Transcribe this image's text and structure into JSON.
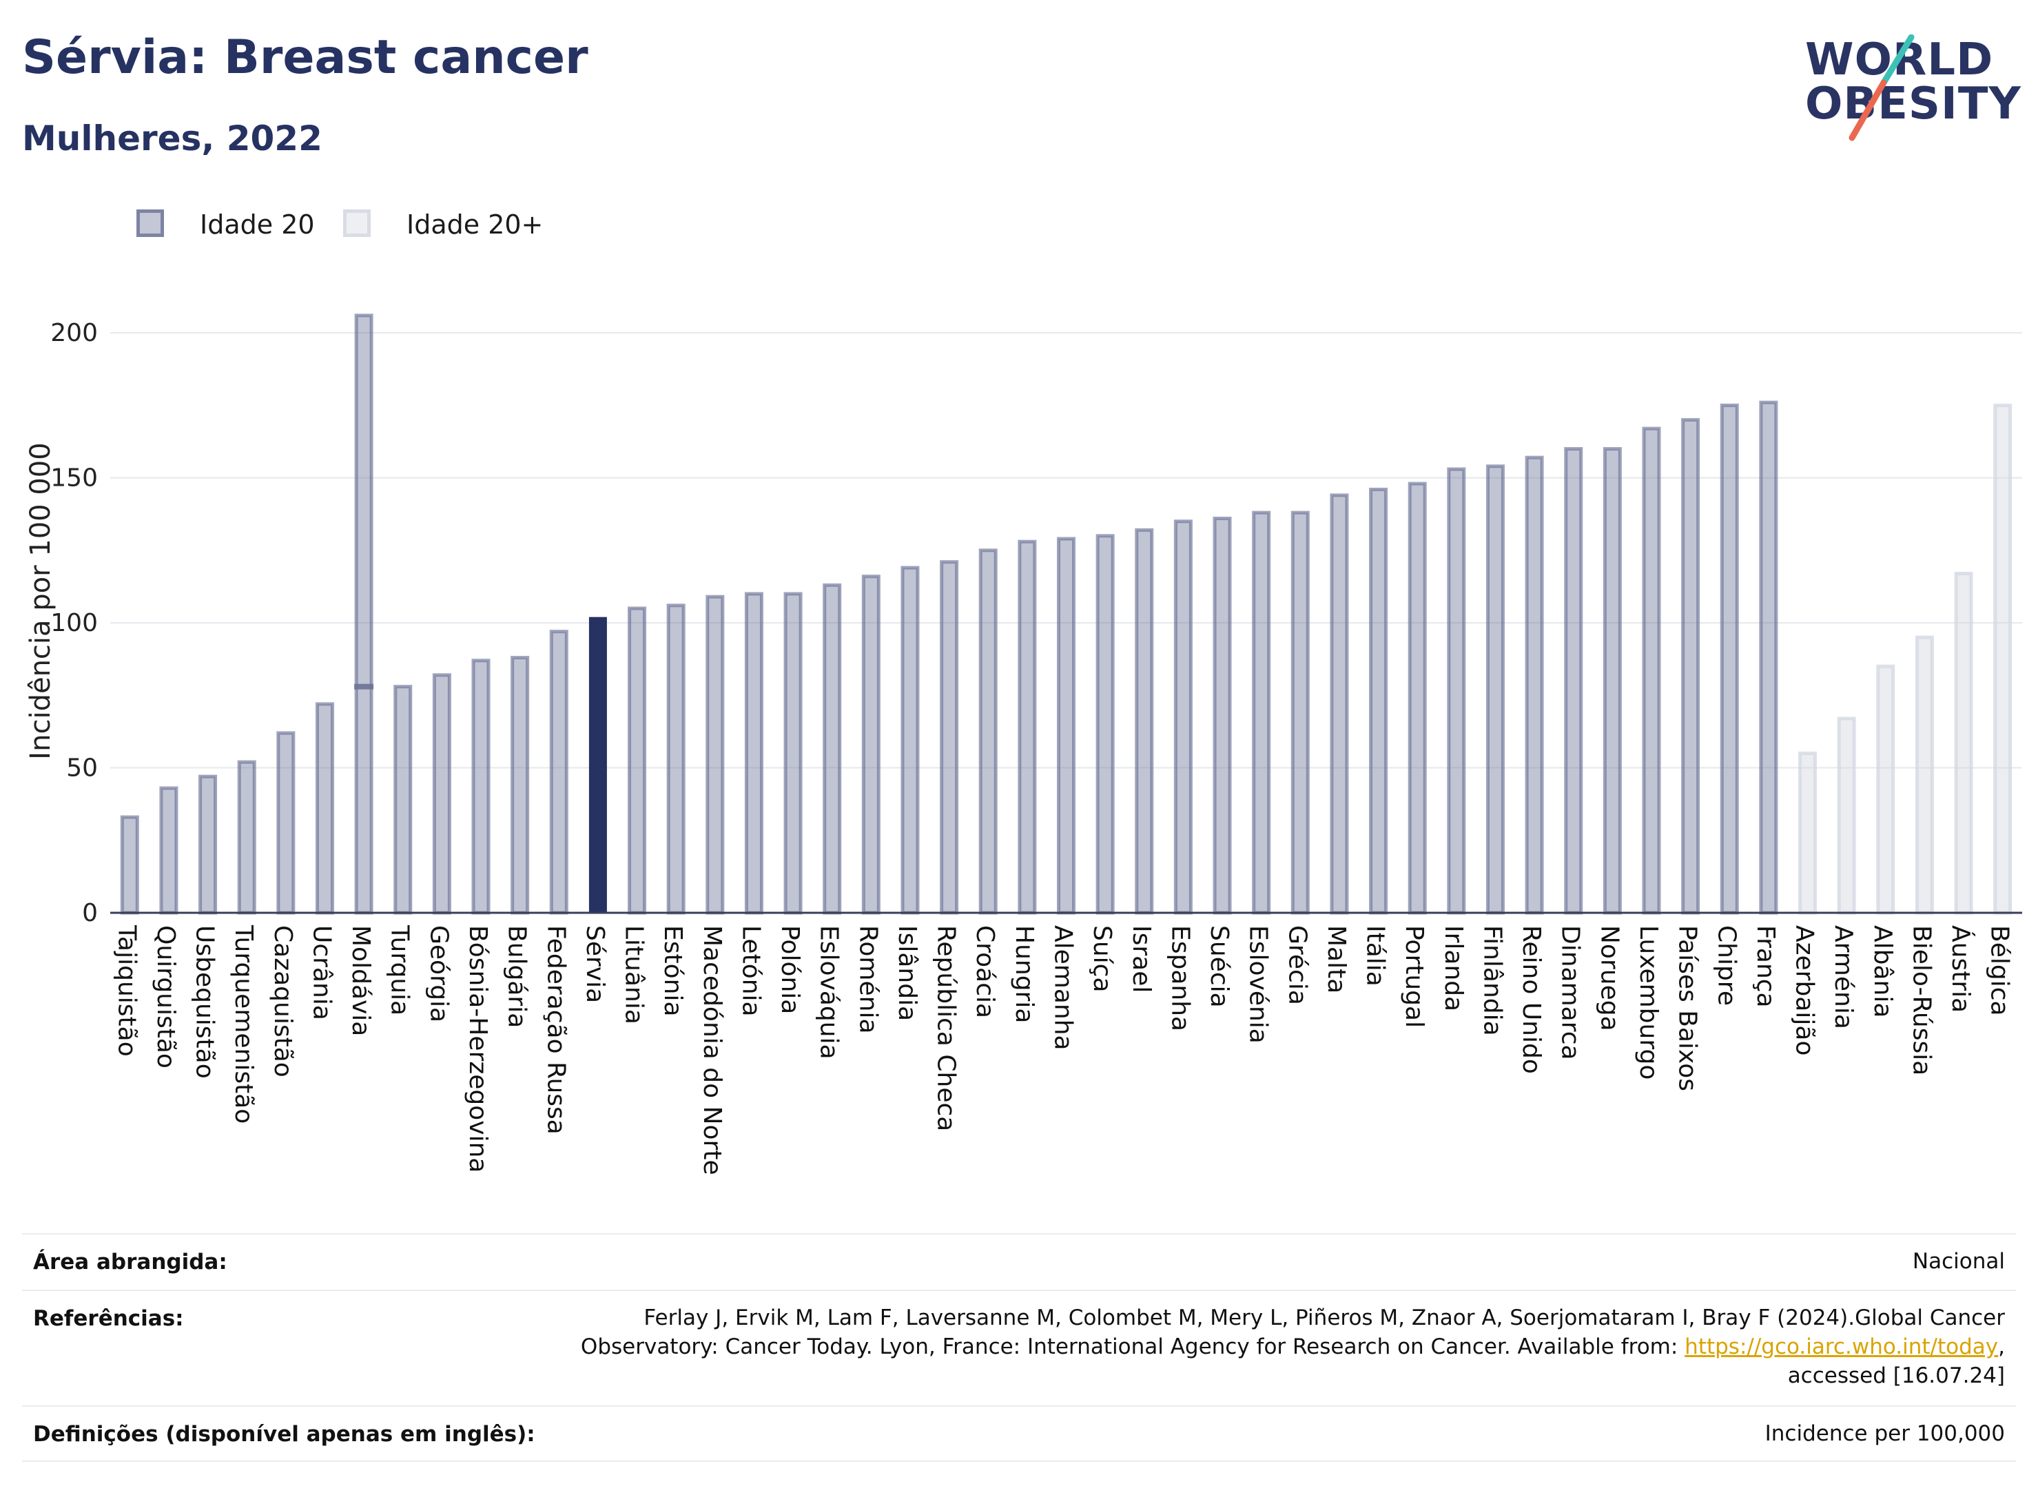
{
  "header": {
    "title": "Sérvia: Breast cancer",
    "subtitle": "Mulheres, 2022"
  },
  "logo": {
    "line1": "WORLD",
    "line2": "OBESITY",
    "accent_colors": [
      "#3cc1b7",
      "#e9684f"
    ]
  },
  "legend": [
    {
      "label": "Idade 20",
      "color": "#6b7396"
    },
    {
      "label": "Idade 20+",
      "color": "#d3d7e1"
    }
  ],
  "chart_data": {
    "type": "bar",
    "ylabel": "Incidência por 100 000",
    "ylim": [
      0,
      215
    ],
    "yticks": [
      0,
      50,
      100,
      150,
      200
    ],
    "grid": true,
    "legend_position": "top-left",
    "highlight": "Sérvia",
    "colors": {
      "series1": "#6b7396",
      "series2": "#d3d7e1",
      "highlight": "#263262"
    },
    "categories": [
      "Tajiquistão",
      "Quirguistão",
      "Usbequistão",
      "Turquemenistão",
      "Cazaquistão",
      "Ucrânia",
      "Moldávia",
      "Turquia",
      "Geórgia",
      "Bósnia-Herzegovina",
      "Bulgária",
      "Federação Russa",
      "Sérvia",
      "Lituânia",
      "Estónia",
      "Macedónia do Norte",
      "Letónia",
      "Polónia",
      "Eslováquia",
      "Roménia",
      "Islândia",
      "República Checa",
      "Croácia",
      "Hungria",
      "Alemanha",
      "Suíça",
      "Israel",
      "Espanha",
      "Suécia",
      "Eslovénia",
      "Grécia",
      "Malta",
      "Itália",
      "Portugal",
      "Irlanda",
      "Finlândia",
      "Reino Unido",
      "Dinamarca",
      "Noruega",
      "Luxemburgo",
      "Países Baixos",
      "Chipre",
      "França",
      "Azerbaijão",
      "Arménia",
      "Albânia",
      "Bielo-Rússia",
      "Áustria",
      "Bélgica"
    ],
    "series": [
      {
        "name": "Idade 20",
        "values": [
          33,
          43,
          47,
          52,
          62,
          72,
          206,
          78,
          82,
          87,
          88,
          97,
          102,
          105,
          106,
          109,
          110,
          110,
          113,
          116,
          119,
          121,
          125,
          128,
          129,
          130,
          132,
          135,
          136,
          138,
          138,
          144,
          146,
          148,
          153,
          154,
          157,
          160,
          160,
          167,
          170,
          175,
          176,
          null,
          null,
          null,
          null,
          null,
          null
        ]
      },
      {
        "name": "Idade 20+",
        "values": [
          null,
          null,
          null,
          null,
          null,
          null,
          78,
          null,
          null,
          null,
          null,
          null,
          null,
          null,
          null,
          null,
          null,
          null,
          null,
          null,
          null,
          null,
          null,
          null,
          null,
          null,
          null,
          null,
          null,
          null,
          null,
          null,
          null,
          null,
          null,
          null,
          null,
          null,
          null,
          null,
          null,
          null,
          null,
          55,
          67,
          85,
          95,
          117,
          175
        ]
      }
    ]
  },
  "footer": {
    "area_label": "Área abrangida:",
    "area_value": "Nacional",
    "refs_label": "Referências:",
    "refs_line1": "Ferlay J, Ervik M, Lam F, Laversanne M, Colombet M, Mery L, Piñeros M, Znaor A, Soerjomataram I, Bray F (2024).Global Cancer",
    "refs_line2_prefix": "Observatory: Cancer Today. Lyon, France: International Agency for Research on Cancer. Available from: ",
    "refs_link": "https://gco.iarc.who.int/today",
    "refs_line2_suffix": ",",
    "refs_line3": "accessed [16.07.24]",
    "defs_label": "Definições (disponível apenas em inglês):",
    "defs_value": "Incidence per 100,000"
  }
}
